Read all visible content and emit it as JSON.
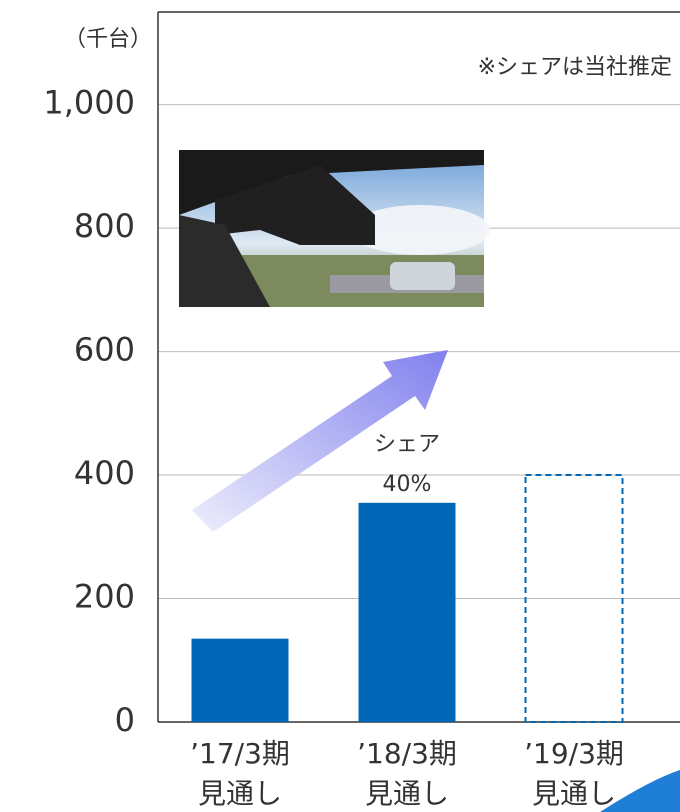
{
  "chart_data": {
    "type": "bar",
    "unit_label": "（千台）",
    "note": "※シェアは当社推定",
    "annotation": {
      "lines": [
        "シェア",
        "40%"
      ],
      "category": 1
    },
    "categories": [
      [
        "’17/3期",
        "見通し"
      ],
      [
        "’18/3期",
        "見通し"
      ],
      [
        "’19/3期",
        "見通し"
      ]
    ],
    "values": [
      135,
      355,
      400
    ],
    "bar_styles": [
      "solid",
      "solid",
      "dashed"
    ],
    "color": "#0068b7",
    "ylim": [
      0,
      1150
    ],
    "yticks": [
      0,
      200,
      400,
      600,
      800,
      {
        "value": 1000,
        "label": "1,000"
      }
    ],
    "grid": true
  }
}
